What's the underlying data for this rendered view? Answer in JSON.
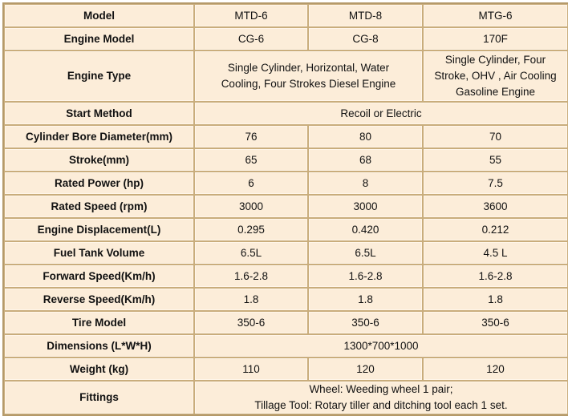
{
  "header": {
    "label": "Model",
    "models": [
      "MTD-6",
      "MTD-8",
      "MTG-6"
    ]
  },
  "rows": {
    "engine_model": {
      "label": "Engine Model",
      "values": [
        "CG-6",
        "CG-8",
        "170F"
      ]
    },
    "engine_type": {
      "label": "Engine Type",
      "diesel_lines": [
        "Single Cylinder, Horizontal, Water",
        "Cooling, Four Strokes Diesel Engine"
      ],
      "gasoline_lines": [
        "Single Cylinder, Four",
        "Stroke, OHV , Air Cooling",
        "Gasoline Engine"
      ]
    },
    "start_method": {
      "label": "Start Method",
      "value": "Recoil or Electric"
    },
    "bore": {
      "label": "Cylinder Bore Diameter(mm)",
      "values": [
        "76",
        "80",
        "70"
      ]
    },
    "stroke": {
      "label": "Stroke(mm)",
      "values": [
        "65",
        "68",
        "55"
      ]
    },
    "rated_power": {
      "label": "Rated Power (hp)",
      "values": [
        "6",
        "8",
        "7.5"
      ]
    },
    "rated_speed": {
      "label": "Rated Speed (rpm)",
      "values": [
        "3000",
        "3000",
        "3600"
      ]
    },
    "displacement": {
      "label": "Engine Displacement(L)",
      "values": [
        "0.295",
        "0.420",
        "0.212"
      ]
    },
    "fuel_tank": {
      "label": "Fuel Tank Volume",
      "values": [
        "6.5L",
        "6.5L",
        "4.5 L"
      ]
    },
    "forward_speed": {
      "label": "Forward Speed(Km/h)",
      "values": [
        "1.6-2.8",
        "1.6-2.8",
        "1.6-2.8"
      ]
    },
    "reverse_speed": {
      "label": "Reverse Speed(Km/h)",
      "values": [
        "1.8",
        "1.8",
        "1.8"
      ]
    },
    "tire_model": {
      "label": "Tire Model",
      "values": [
        "350-6",
        "350-6",
        "350-6"
      ]
    },
    "dimensions": {
      "label": "Dimensions (L*W*H)",
      "value": "1300*700*1000"
    },
    "weight": {
      "label": "Weight (kg)",
      "values": [
        "110",
        "120",
        "120"
      ]
    },
    "fittings": {
      "label": "Fittings",
      "lines": [
        "Wheel: Weeding wheel 1 pair;",
        "Tillage Tool: Rotary tiller and ditching tool each 1 set."
      ]
    }
  },
  "colors": {
    "cell_bg": "#fcedd9",
    "border": "#c9ad7c"
  }
}
